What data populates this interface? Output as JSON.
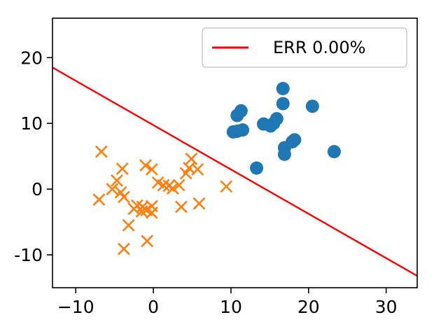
{
  "chart_data": {
    "type": "scatter",
    "title": "",
    "xlabel": "",
    "ylabel": "",
    "xlim": [
      -13,
      34
    ],
    "ylim": [
      -15,
      26
    ],
    "xticks": [
      -10,
      0,
      10,
      20,
      30
    ],
    "yticks": [
      -10,
      0,
      10,
      20
    ],
    "xtick_labels": [
      "−10",
      "0",
      "10",
      "20",
      "30"
    ],
    "ytick_labels": [
      "-10",
      "0",
      "10",
      "20"
    ],
    "grid": false,
    "legend": {
      "placement": "top-right",
      "entries": [
        {
          "label": "ERR 0.00%",
          "color": "#ff0000",
          "marker": "line"
        }
      ]
    },
    "series": [
      {
        "marker": "circle",
        "color": "#1f77b4",
        "points": [
          [
            16.7,
            15.3
          ],
          [
            11.3,
            11.9
          ],
          [
            10.8,
            11.2
          ],
          [
            20.5,
            12.6
          ],
          [
            16.7,
            13.0
          ],
          [
            15.9,
            10.7
          ],
          [
            15.5,
            10.0
          ],
          [
            15.1,
            9.6
          ],
          [
            14.2,
            9.9
          ],
          [
            11.5,
            9.0
          ],
          [
            10.8,
            8.8
          ],
          [
            10.3,
            8.7
          ],
          [
            18.2,
            7.5
          ],
          [
            17.9,
            7.2
          ],
          [
            16.9,
            6.3
          ],
          [
            16.9,
            5.3
          ],
          [
            23.3,
            5.7
          ],
          [
            13.3,
            3.2
          ]
        ]
      },
      {
        "marker": "x",
        "color": "#ff7f0e",
        "points": [
          [
            -6.7,
            5.7
          ],
          [
            -4.0,
            3.1
          ],
          [
            -1.0,
            3.6
          ],
          [
            -0.2,
            3.0
          ],
          [
            4.9,
            4.6
          ],
          [
            4.6,
            3.2
          ],
          [
            4.2,
            2.4
          ],
          [
            5.7,
            3.0
          ],
          [
            -4.7,
            1.3
          ],
          [
            -5.3,
            0.0
          ],
          [
            -4.2,
            -0.5
          ],
          [
            -3.8,
            -1.2
          ],
          [
            -7.0,
            -1.6
          ],
          [
            0.6,
            1.0
          ],
          [
            1.3,
            0.6
          ],
          [
            2.0,
            0.5
          ],
          [
            2.5,
            0.1
          ],
          [
            3.3,
            0.6
          ],
          [
            9.4,
            0.4
          ],
          [
            -2.1,
            -2.5
          ],
          [
            -1.4,
            -2.7
          ],
          [
            -0.9,
            -3.2
          ],
          [
            -0.2,
            -2.6
          ],
          [
            -1.5,
            -3.4
          ],
          [
            -0.2,
            -3.6
          ],
          [
            -2.5,
            -3.0
          ],
          [
            3.6,
            -2.7
          ],
          [
            5.9,
            -2.2
          ],
          [
            -3.2,
            -5.5
          ],
          [
            -0.8,
            -7.9
          ],
          [
            -3.8,
            -9.1
          ]
        ]
      }
    ],
    "lines": [
      {
        "label": "ERR 0.00%",
        "color": "#ff0000",
        "x": [
          -13,
          34
        ],
        "y": [
          18.5,
          -13.2
        ]
      }
    ]
  }
}
